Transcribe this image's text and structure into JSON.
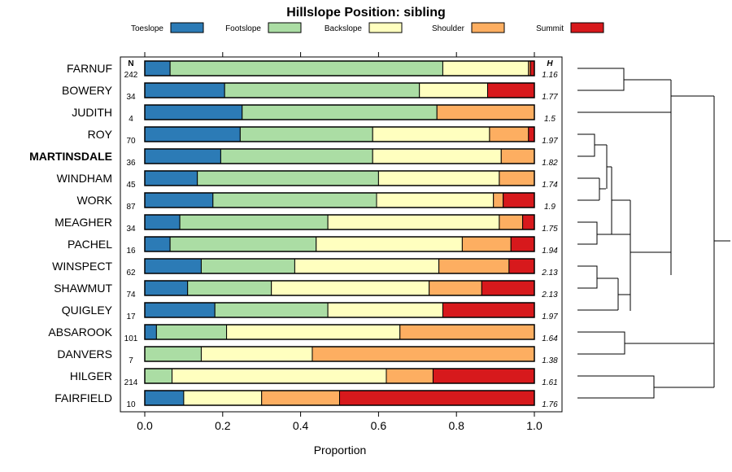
{
  "chart_data": {
    "type": "bar",
    "stacked": true,
    "orientation": "horizontal",
    "title": "Hillslope Position: sibling",
    "xlabel": "Proportion",
    "ylabel": "",
    "xlim": [
      0,
      1
    ],
    "xticks": [
      "0.0",
      "0.2",
      "0.4",
      "0.6",
      "0.8",
      "1.0"
    ],
    "n_header": "N",
    "h_header": "H",
    "highlight": "MARTINSDALE",
    "legend_position": "top",
    "series": [
      {
        "name": "Toeslope",
        "color": "#2C7BB6"
      },
      {
        "name": "Footslope",
        "color": "#ABDDA4"
      },
      {
        "name": "Backslope",
        "color": "#FFFFBF"
      },
      {
        "name": "Shoulder",
        "color": "#FDAE61"
      },
      {
        "name": "Summit",
        "color": "#D7191C"
      }
    ],
    "rows": [
      {
        "label": "FARNUF",
        "n": "242",
        "h": "1.16",
        "values": [
          0.065,
          0.7,
          0.22,
          0.005,
          0.01
        ]
      },
      {
        "label": "BOWERY",
        "n": "34",
        "h": "1.77",
        "values": [
          0.205,
          0.5,
          0.175,
          0.0,
          0.12
        ]
      },
      {
        "label": "JUDITH",
        "n": "4",
        "h": "1.5",
        "values": [
          0.25,
          0.5,
          0.0,
          0.25,
          0.0
        ]
      },
      {
        "label": "ROY",
        "n": "70",
        "h": "1.97",
        "values": [
          0.245,
          0.34,
          0.3,
          0.1,
          0.015
        ]
      },
      {
        "label": "MARTINSDALE",
        "n": "36",
        "h": "1.82",
        "values": [
          0.195,
          0.39,
          0.33,
          0.085,
          0.0
        ]
      },
      {
        "label": "WINDHAM",
        "n": "45",
        "h": "1.74",
        "values": [
          0.135,
          0.465,
          0.31,
          0.09,
          0.0
        ]
      },
      {
        "label": "WORK",
        "n": "87",
        "h": "1.9",
        "values": [
          0.175,
          0.42,
          0.3,
          0.025,
          0.08
        ]
      },
      {
        "label": "MEAGHER",
        "n": "34",
        "h": "1.75",
        "values": [
          0.09,
          0.38,
          0.44,
          0.06,
          0.03
        ]
      },
      {
        "label": "PACHEL",
        "n": "16",
        "h": "1.94",
        "values": [
          0.065,
          0.375,
          0.375,
          0.125,
          0.06
        ]
      },
      {
        "label": "WINSPECT",
        "n": "62",
        "h": "2.13",
        "values": [
          0.145,
          0.24,
          0.37,
          0.18,
          0.065
        ]
      },
      {
        "label": "SHAWMUT",
        "n": "74",
        "h": "2.13",
        "values": [
          0.11,
          0.215,
          0.405,
          0.135,
          0.135
        ]
      },
      {
        "label": "QUIGLEY",
        "n": "17",
        "h": "1.97",
        "values": [
          0.18,
          0.29,
          0.295,
          0.0,
          0.235
        ]
      },
      {
        "label": "ABSAROOK",
        "n": "101",
        "h": "1.64",
        "values": [
          0.03,
          0.18,
          0.445,
          0.345,
          0.0
        ]
      },
      {
        "label": "DANVERS",
        "n": "7",
        "h": "1.38",
        "values": [
          0.0,
          0.145,
          0.285,
          0.57,
          0.0
        ]
      },
      {
        "label": "HILGER",
        "n": "214",
        "h": "1.61",
        "values": [
          0.0,
          0.07,
          0.55,
          0.12,
          0.26
        ]
      },
      {
        "label": "FAIRFIELD",
        "n": "10",
        "h": "1.76",
        "values": [
          0.1,
          0.0,
          0.2,
          0.2,
          0.5
        ]
      }
    ]
  }
}
